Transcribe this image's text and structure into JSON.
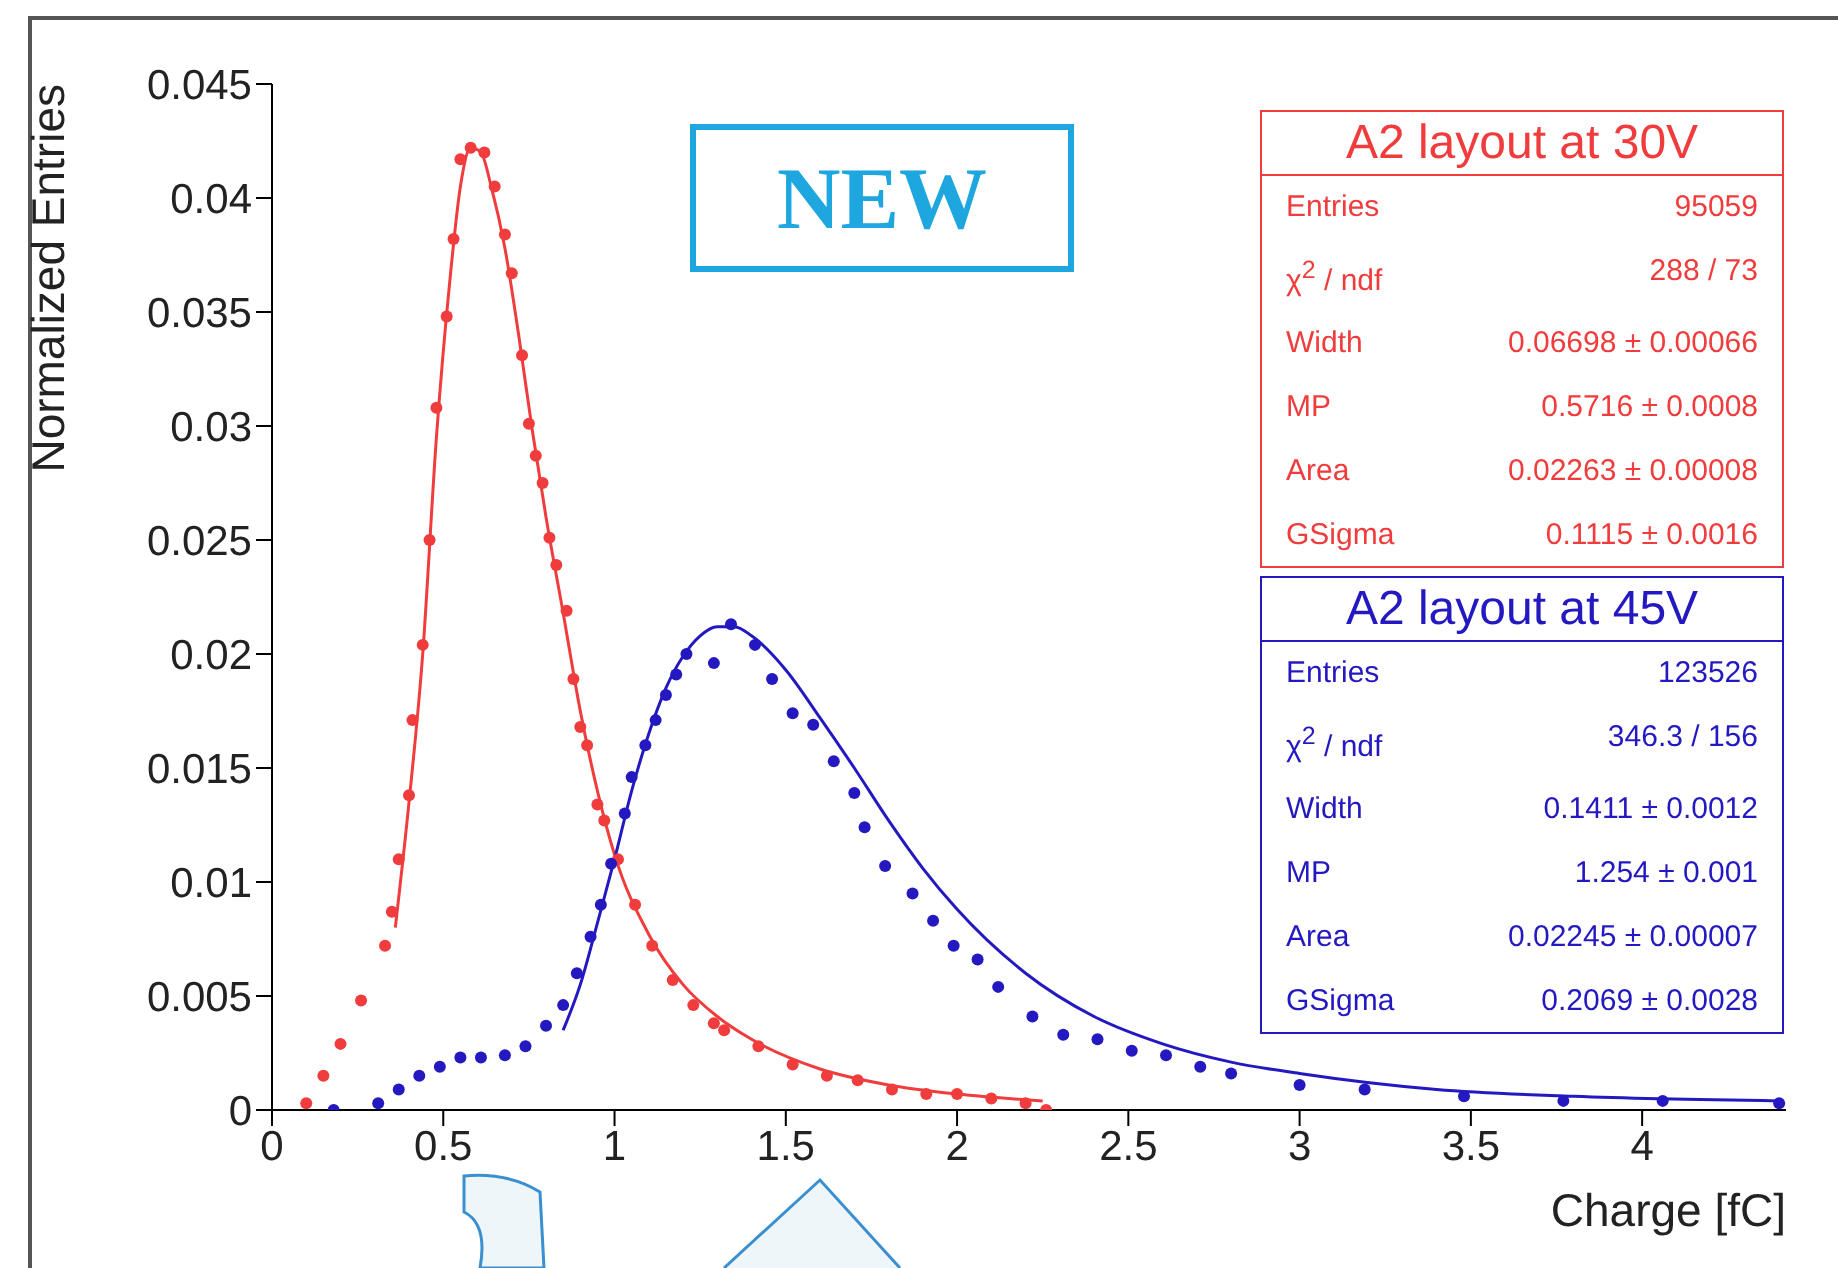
{
  "chart_data": {
    "type": "scatter",
    "xlabel": "Charge [fC]",
    "ylabel": "Normalized Entries",
    "xlim": [
      0,
      4.42
    ],
    "ylim": [
      0,
      0.045
    ],
    "xticks": [
      0,
      0.5,
      1,
      1.5,
      2,
      2.5,
      3,
      3.5,
      4
    ],
    "yticks": [
      0,
      0.005,
      0.01,
      0.015,
      0.02,
      0.025,
      0.03,
      0.035,
      0.04,
      0.045
    ],
    "series": [
      {
        "name": "A2 layout at 30V",
        "type": "scatter",
        "marker": "circle",
        "color": "#f03c3c",
        "x": [
          0.1,
          0.15,
          0.2,
          0.26,
          0.33,
          0.35,
          0.37,
          0.4,
          0.41,
          0.44,
          0.46,
          0.48,
          0.51,
          0.53,
          0.55,
          0.58,
          0.62,
          0.65,
          0.68,
          0.7,
          0.73,
          0.75,
          0.77,
          0.79,
          0.81,
          0.83,
          0.86,
          0.88,
          0.9,
          0.92,
          0.95,
          0.97,
          1.01,
          1.06,
          1.11,
          1.17,
          1.23,
          1.29,
          1.32,
          1.42,
          1.52,
          1.62,
          1.71,
          1.81,
          1.91,
          2.0,
          2.1,
          2.2,
          2.26
        ],
        "values": [
          0.0003,
          0.0015,
          0.0029,
          0.0048,
          0.0072,
          0.0087,
          0.011,
          0.0138,
          0.0171,
          0.0204,
          0.025,
          0.0308,
          0.0348,
          0.0382,
          0.0417,
          0.0422,
          0.042,
          0.0405,
          0.0384,
          0.0367,
          0.0331,
          0.0301,
          0.0287,
          0.0275,
          0.0251,
          0.0239,
          0.0219,
          0.0189,
          0.0168,
          0.016,
          0.0134,
          0.0127,
          0.011,
          0.009,
          0.0072,
          0.0057,
          0.0046,
          0.0038,
          0.0035,
          0.0028,
          0.002,
          0.0015,
          0.0013,
          0.0009,
          0.0007,
          0.0007,
          0.0005,
          0.0003,
          0
        ]
      },
      {
        "name": "A2 layout at 45V",
        "type": "scatter",
        "marker": "circle",
        "color": "#2418c0",
        "x": [
          0.18,
          0.31,
          0.37,
          0.43,
          0.49,
          0.55,
          0.61,
          0.68,
          0.74,
          0.8,
          0.85,
          0.89,
          0.93,
          0.96,
          0.99,
          1.03,
          1.05,
          1.09,
          1.12,
          1.15,
          1.18,
          1.21,
          1.29,
          1.34,
          1.41,
          1.46,
          1.52,
          1.58,
          1.64,
          1.7,
          1.73,
          1.79,
          1.87,
          1.93,
          1.99,
          2.06,
          2.12,
          2.22,
          2.31,
          2.41,
          2.51,
          2.61,
          2.71,
          2.8,
          3.0,
          3.19,
          3.48,
          3.77,
          4.06,
          4.4
        ],
        "values": [
          0,
          0.0003,
          0.0009,
          0.0015,
          0.0019,
          0.0023,
          0.0023,
          0.0024,
          0.0028,
          0.0037,
          0.0046,
          0.006,
          0.0076,
          0.009,
          0.0108,
          0.013,
          0.0146,
          0.016,
          0.0171,
          0.0182,
          0.0191,
          0.02,
          0.0196,
          0.0213,
          0.0204,
          0.0189,
          0.0174,
          0.0169,
          0.0153,
          0.0139,
          0.0124,
          0.0107,
          0.0095,
          0.0083,
          0.0072,
          0.0066,
          0.0054,
          0.0041,
          0.0033,
          0.0031,
          0.0026,
          0.0024,
          0.0019,
          0.0016,
          0.0011,
          0.0009,
          0.0006,
          0.0004,
          0.0004,
          0.0003
        ]
      },
      {
        "type": "line",
        "marker": "none",
        "color": "#f03c3c",
        "x": [
          0.36,
          0.4,
          0.44,
          0.48,
          0.52,
          0.55,
          0.58,
          0.61,
          0.64,
          0.68,
          0.72,
          0.76,
          0.8,
          0.85,
          0.9,
          0.95,
          1.0,
          1.1,
          1.2,
          1.3,
          1.4,
          1.6,
          1.8,
          2.0,
          2.25
        ],
        "values": [
          0.008,
          0.0135,
          0.02,
          0.0295,
          0.0365,
          0.0405,
          0.0422,
          0.042,
          0.0405,
          0.0378,
          0.034,
          0.0298,
          0.026,
          0.0218,
          0.0175,
          0.014,
          0.0112,
          0.0077,
          0.0055,
          0.0041,
          0.0031,
          0.0018,
          0.0011,
          0.0007,
          0.0004
        ]
      },
      {
        "type": "line",
        "marker": "none",
        "color": "#2418c0",
        "x": [
          0.85,
          0.9,
          0.95,
          1.0,
          1.05,
          1.1,
          1.15,
          1.2,
          1.25,
          1.3,
          1.35,
          1.4,
          1.5,
          1.6,
          1.7,
          1.8,
          1.9,
          2.0,
          2.2,
          2.4,
          2.6,
          2.8,
          3.0,
          3.4,
          3.8,
          4.4
        ],
        "values": [
          0.0035,
          0.0055,
          0.0082,
          0.011,
          0.014,
          0.0165,
          0.0185,
          0.0199,
          0.0208,
          0.0212,
          0.0212,
          0.0208,
          0.0193,
          0.0172,
          0.015,
          0.0127,
          0.0106,
          0.0088,
          0.006,
          0.0041,
          0.0029,
          0.0021,
          0.0016,
          0.0009,
          0.0006,
          0.0004
        ]
      }
    ],
    "annotations": [
      "NEW",
      "Entries",
      "95059",
      "χ$^{2}$ / ndf",
      "288 / 73",
      "Width",
      "0.06698 ± 0.00066",
      "MP",
      "0.5716 ± 0.0008",
      "Area",
      "0.02263 ± 0.00008",
      "GSigma",
      "0.1115 ± 0.0016",
      "Entries",
      "123526",
      "χ$^{2}$ / ndf",
      "346.3 / 156",
      "Width",
      "0.1411 ± 0.0012",
      "MP",
      "1.254 ± 0.001",
      "Area",
      "0.02245 ± 0.00007",
      "GSigma",
      "0.2069 ± 0.0028"
    ]
  }
}
